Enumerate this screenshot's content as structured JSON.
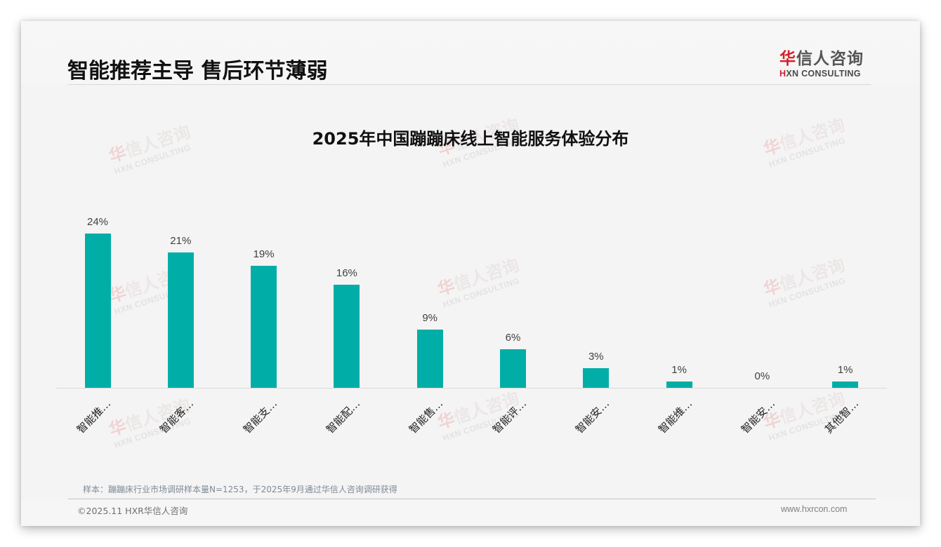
{
  "header": {
    "title": "智能推荐主导 售后环节薄弱",
    "logo_cn_first": "华",
    "logo_cn_rest": "信人咨询",
    "logo_en_first": "H",
    "logo_en_rest": "XN CONSULTING"
  },
  "watermark": {
    "cn_first": "华",
    "cn_rest": "信人咨询",
    "en": "HXN CONSULTING"
  },
  "chart_data": {
    "type": "bar",
    "title": "2025年中国蹦蹦床线上智能服务体验分布",
    "categories": [
      "智能推…",
      "智能客…",
      "智能支…",
      "智能配…",
      "智能售…",
      "智能评…",
      "智能安…",
      "智能维…",
      "智能安…",
      "其他智…"
    ],
    "values": [
      24,
      21,
      19,
      16,
      9,
      6,
      3,
      1,
      0,
      1
    ],
    "value_labels": [
      "24%",
      "21%",
      "19%",
      "16%",
      "9%",
      "6%",
      "3%",
      "1%",
      "0%",
      "1%"
    ],
    "xlabel": "",
    "ylabel": "",
    "ylim": [
      0,
      26
    ],
    "unit": "%",
    "grid": false,
    "legend": "none",
    "bar_color": "#00aea7",
    "category_label_rotation": -45
  },
  "footer": {
    "footnote": "样本：蹦蹦床行业市场调研样本量N=1253，于2025年9月通过华信人咨询调研获得",
    "copyright": "©2025.11 HXR华信人咨询",
    "website": "www.hxrcon.com"
  },
  "colors": {
    "accent": "#00aea7",
    "brand_red": "#d3202b",
    "background": "#f4f4f4"
  }
}
